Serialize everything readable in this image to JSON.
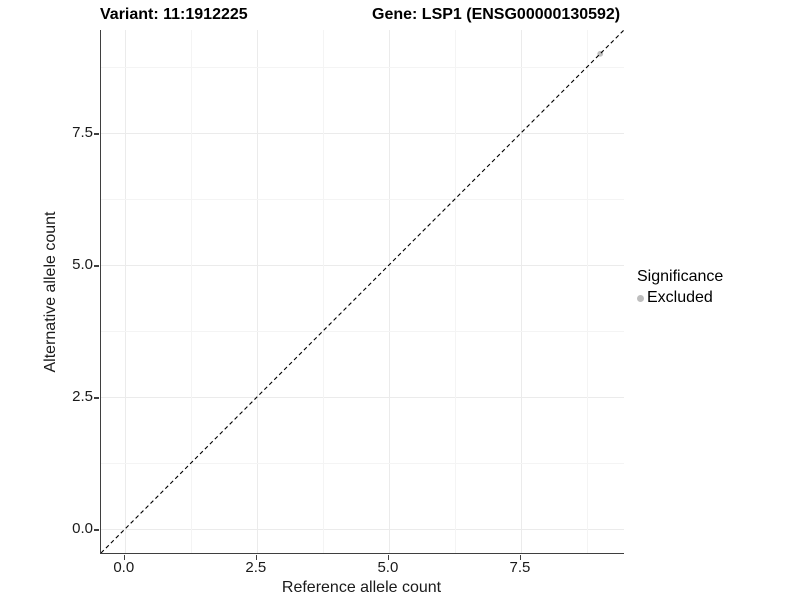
{
  "header": {
    "variant_title": "Variant: 11:1912225",
    "gene_title": "Gene: LSP1 (ENSG00000130592)"
  },
  "chart_data": {
    "type": "scatter",
    "xlabel": "Reference allele count",
    "ylabel": "Alternative allele count",
    "xlim": [
      -0.45,
      9.45
    ],
    "ylim": [
      -0.45,
      9.45
    ],
    "x_ticks": {
      "values": [
        0,
        2.5,
        5,
        7.5
      ],
      "labels": [
        "0.0",
        "2.5",
        "5.0",
        "7.5"
      ]
    },
    "y_ticks": {
      "values": [
        0,
        2.5,
        5,
        7.5
      ],
      "labels": [
        "0.0",
        "2.5",
        "5.0",
        "7.5"
      ]
    },
    "x_minor_ticks": [
      1.25,
      3.75,
      6.25,
      8.75
    ],
    "y_minor_ticks": [
      1.25,
      3.75,
      6.25,
      8.75
    ],
    "grid": true,
    "identity_line": {
      "style": "dashed",
      "color": "#000000",
      "from": [
        -0.45,
        -0.45
      ],
      "to": [
        9.45,
        9.45
      ]
    },
    "series": [
      {
        "name": "Excluded",
        "color": "#bebebe",
        "marker": "circle",
        "points": [
          [
            9,
            9
          ]
        ]
      }
    ],
    "legend": {
      "title": "Significance",
      "position": "right",
      "items": [
        {
          "label": "Excluded",
          "color": "#bebebe",
          "marker": "circle"
        }
      ]
    }
  },
  "colors": {
    "background": "#ffffff",
    "grid_major": "#ebebeb",
    "grid_minor": "#f4f4f4",
    "axis_line": "#3f3f3f",
    "text": "#1a1a1a",
    "excluded_point": "#bebebe"
  }
}
